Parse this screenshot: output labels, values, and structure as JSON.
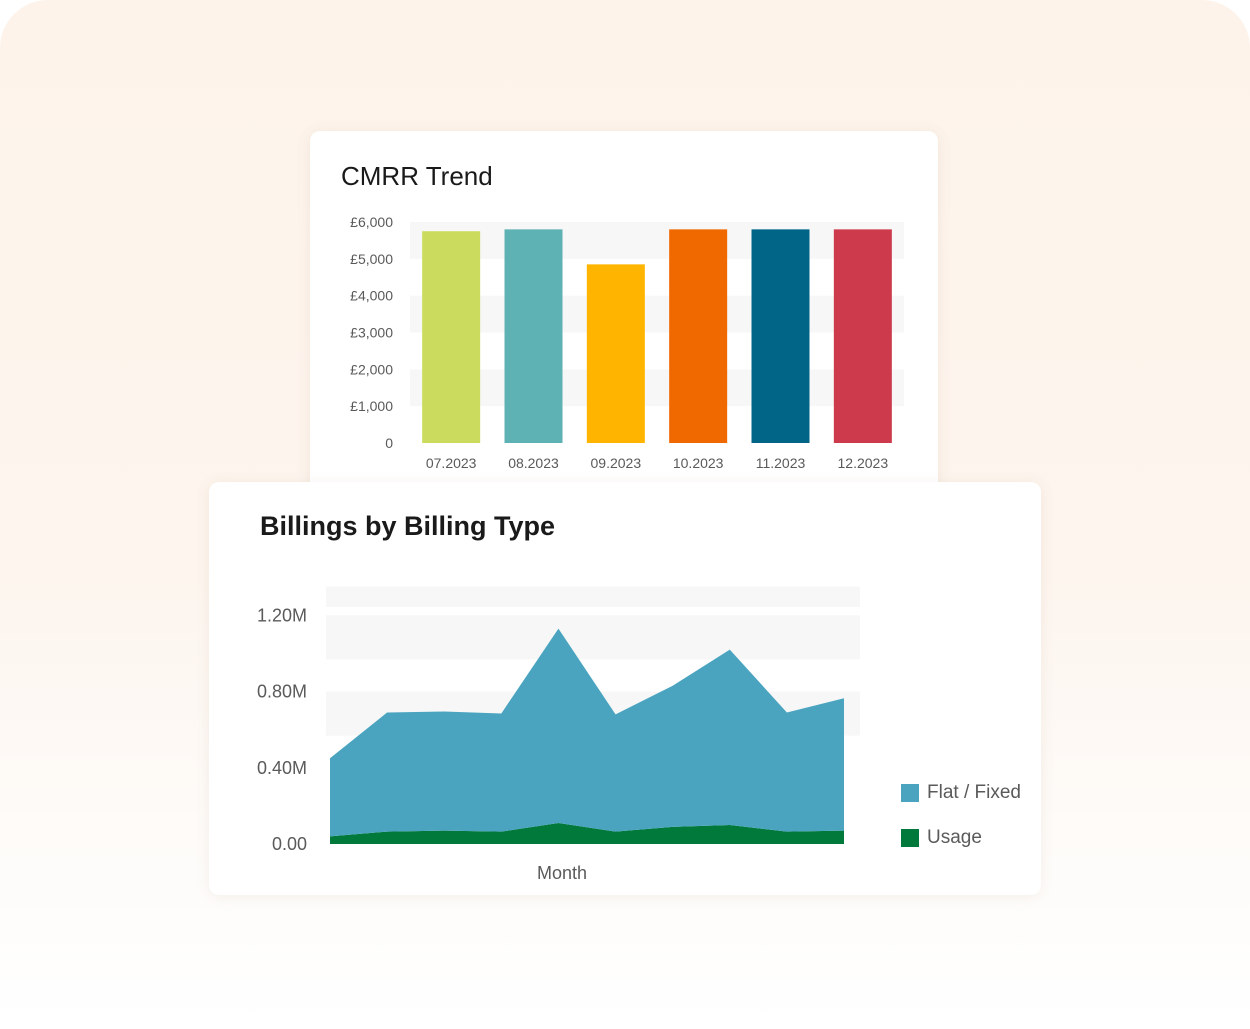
{
  "chart_data": [
    {
      "type": "bar",
      "title": "CMRR Trend",
      "categories": [
        "07.2023",
        "08.2023",
        "09.2023",
        "10.2023",
        "11.2023",
        "12.2023"
      ],
      "values": [
        5750,
        5800,
        4850,
        5800,
        5800,
        5800
      ],
      "colors": [
        "#cbdb5e",
        "#5eb2b3",
        "#ffb400",
        "#ef6800",
        "#006587",
        "#cc3a4b"
      ],
      "ylim": [
        0,
        6000
      ],
      "yticks": [
        0,
        1000,
        2000,
        3000,
        4000,
        5000,
        6000
      ],
      "ytick_labels": [
        "0",
        "£1,000",
        "£2,000",
        "£3,000",
        "£4,000",
        "£5,000",
        "£6,000"
      ],
      "grid": true,
      "legend": "none"
    },
    {
      "type": "area",
      "title": "Billings by Billing Type",
      "xlabel": "Month",
      "ylabel": "",
      "x": [
        1,
        2,
        3,
        4,
        5,
        6,
        7,
        8,
        9,
        10
      ],
      "stacked": true,
      "series": [
        {
          "name": "Usage",
          "color": "#00793b",
          "values": [
            0.04,
            0.065,
            0.07,
            0.065,
            0.11,
            0.065,
            0.09,
            0.1,
            0.065,
            0.07
          ]
        },
        {
          "name": "Flat / Fixed",
          "color": "#4aa4c0",
          "values": [
            0.41,
            0.625,
            0.625,
            0.62,
            1.02,
            0.615,
            0.74,
            0.92,
            0.625,
            0.695
          ]
        }
      ],
      "ylim": [
        0,
        1.35
      ],
      "yticks": [
        0,
        0.4,
        0.8,
        1.2
      ],
      "ytick_labels": [
        "0.00",
        "0.40M",
        "0.80M",
        "1.20M"
      ],
      "grid": true,
      "legend": "right",
      "legend_order": [
        "Flat / Fixed",
        "Usage"
      ]
    }
  ]
}
